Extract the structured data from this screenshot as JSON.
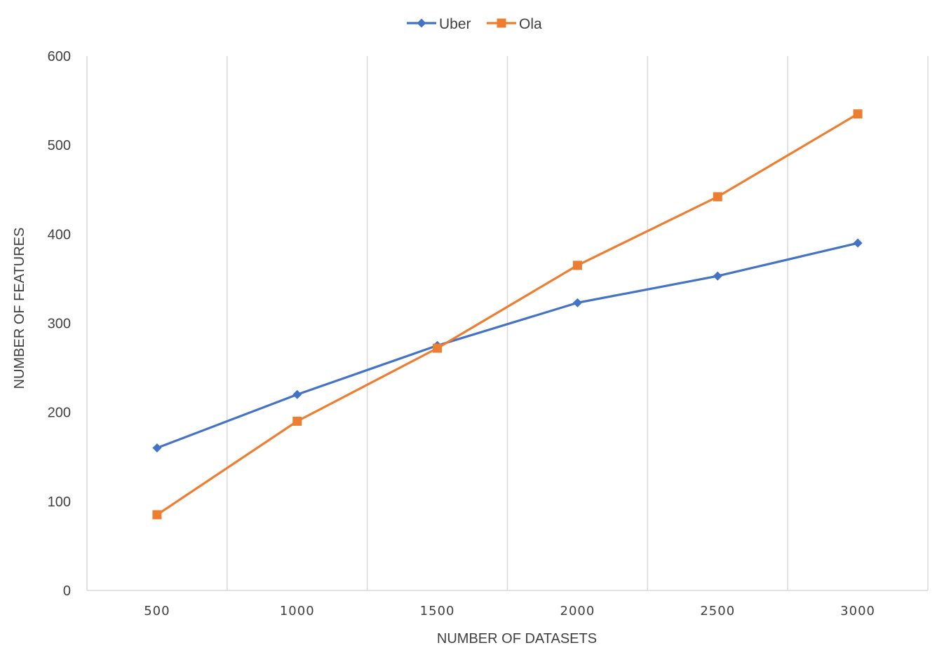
{
  "chart_data": {
    "type": "line",
    "x": [
      500,
      1000,
      1500,
      2000,
      2500,
      3000
    ],
    "xlabel": "NUMBER OF DATASETS",
    "ylabel": "NUMBER OF FEATURES",
    "ylim": [
      0,
      600
    ],
    "yticks": [
      0,
      100,
      200,
      300,
      400,
      500,
      600
    ],
    "grid": "vertical",
    "legend": "top-center",
    "series": [
      {
        "name": "Uber",
        "color": "#4472C4",
        "marker": "diamond",
        "values": [
          160,
          220,
          275,
          323,
          353,
          390
        ]
      },
      {
        "name": "Ola",
        "color": "#ED7D31",
        "marker": "square",
        "values": [
          85,
          190,
          272,
          365,
          442,
          535
        ]
      }
    ]
  }
}
